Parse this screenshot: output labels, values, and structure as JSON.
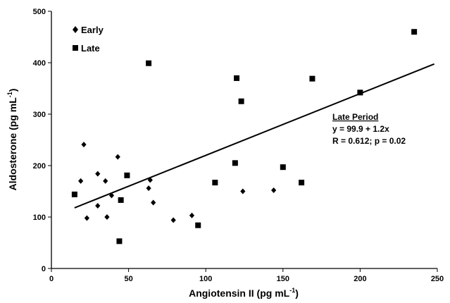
{
  "chart_data": {
    "type": "scatter",
    "xlabel": "Angiotensin II (pg mL",
    "xlabel_sup": "-1",
    "xlabel_end": ")",
    "ylabel": "Aldosterone (pg mL",
    "ylabel_sup": "-1",
    "ylabel_end": ")",
    "xlim": [
      0,
      250
    ],
    "ylim": [
      0,
      500
    ],
    "xticks": [
      0,
      50,
      100,
      150,
      200,
      250
    ],
    "yticks": [
      0,
      100,
      200,
      300,
      400,
      500
    ],
    "grid": false,
    "legend_position": "top-left",
    "series": [
      {
        "name": "Early",
        "marker": "diamond",
        "x": [
          19,
          21,
          23,
          30,
          30,
          35,
          36,
          39,
          43,
          63,
          64,
          66,
          79,
          91,
          124,
          144
        ],
        "y": [
          170,
          241,
          98,
          184,
          122,
          170,
          100,
          142,
          217,
          156,
          172,
          128,
          94,
          103,
          150,
          152
        ]
      },
      {
        "name": "Late",
        "marker": "square",
        "x": [
          15,
          44,
          45,
          49,
          63,
          95,
          106,
          119,
          120,
          123,
          150,
          162,
          169,
          200,
          235
        ],
        "y": [
          144,
          53,
          133,
          181,
          399,
          84,
          167,
          205,
          370,
          325,
          197,
          167,
          369,
          342,
          460
        ]
      }
    ],
    "trendline": {
      "series": "Late",
      "intercept": 99.9,
      "slope": 1.2,
      "x_start": 15,
      "x_end": 248
    },
    "annotation": {
      "title": "Late Period",
      "line1": "y = 99.9 + 1.2x",
      "line2": "R = 0.612; p = 0.02"
    }
  }
}
